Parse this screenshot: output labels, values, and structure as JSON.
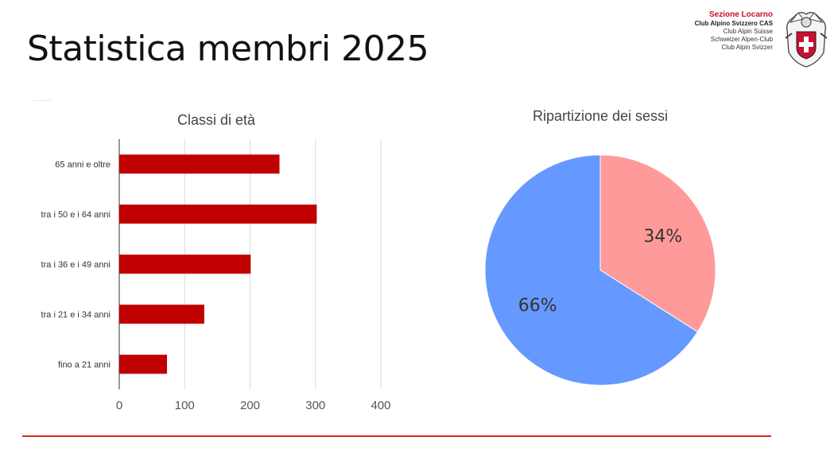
{
  "slide": {
    "title": "Statistica membri 2025"
  },
  "logo": {
    "section": "Sezione Locarno",
    "line1": "Club Alpino Svizzero CAS",
    "line2": "Club Alpin Suisse",
    "line3": "Schweizer Alpen-Club",
    "line4": "Club Alpin Svizzer"
  },
  "colors": {
    "bar": "#c00000",
    "pie_female": "#ff9a9a",
    "pie_male": "#6699ff",
    "accent_line": "#e1231d",
    "emblem_red": "#c8102e"
  },
  "chart_data": [
    {
      "type": "bar",
      "orientation": "horizontal",
      "title": "Classi di età",
      "categories": [
        "65 anni e oltre",
        "tra i 50 e i 64 anni",
        "tra i 36 e i 49 anni",
        "tra i 21 e i 34 anni",
        "fino a 21 anni"
      ],
      "values": [
        245,
        302,
        201,
        130,
        73
      ],
      "xlim": [
        0,
        400
      ],
      "xticks": [
        "0",
        "100",
        "200",
        "300",
        "400"
      ],
      "grid": true,
      "legend": "none"
    },
    {
      "type": "pie",
      "title": "Ripartizione dei sessi",
      "slices": [
        {
          "label": "34%",
          "value": 34,
          "color": "#ff9a9a"
        },
        {
          "label": "66%",
          "value": 66,
          "color": "#6699ff"
        }
      ],
      "legend": "none"
    }
  ]
}
